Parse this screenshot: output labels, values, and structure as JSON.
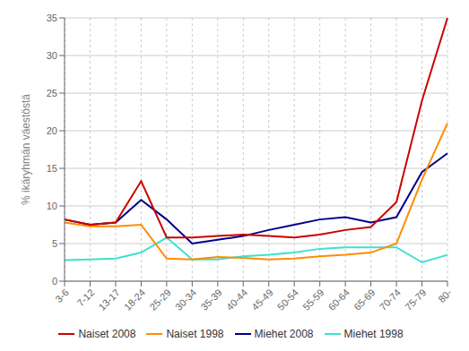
{
  "chart_data": {
    "type": "line",
    "ylabel": "% ikäryhmän väestöstä",
    "categories": [
      "3-6",
      "7-12",
      "13-17",
      "18-24",
      "25-29",
      "30-34",
      "35-39",
      "40-44",
      "45-49",
      "50-54",
      "55-59",
      "60-64",
      "65-69",
      "70-74",
      "75-79",
      "80-"
    ],
    "series": [
      {
        "name": "Naiset 2008",
        "color": "#cc0000",
        "values": [
          8.2,
          7.5,
          7.8,
          13.3,
          5.8,
          5.8,
          6.0,
          6.2,
          6.0,
          5.8,
          6.2,
          6.8,
          7.2,
          10.5,
          24.0,
          35.0
        ]
      },
      {
        "name": "Naiset 1998",
        "color": "#ff8c00",
        "values": [
          7.8,
          7.3,
          7.3,
          7.5,
          3.0,
          2.9,
          3.2,
          3.1,
          2.9,
          3.0,
          3.3,
          3.5,
          3.8,
          5.0,
          13.5,
          21.0
        ]
      },
      {
        "name": "Miehet 2008",
        "color": "#00008b",
        "values": [
          8.2,
          7.5,
          7.8,
          10.8,
          8.2,
          5.0,
          5.5,
          6.0,
          6.8,
          7.5,
          8.2,
          8.5,
          7.8,
          8.5,
          14.5,
          17.0
        ]
      },
      {
        "name": "Miehet 1998",
        "color": "#40e0d0",
        "values": [
          2.8,
          2.9,
          3.0,
          3.8,
          5.8,
          2.9,
          2.9,
          3.3,
          3.5,
          3.8,
          4.3,
          4.5,
          4.5,
          4.5,
          2.5,
          3.5
        ]
      }
    ],
    "ylim": [
      0,
      35
    ],
    "yticks": [
      0,
      5,
      10,
      15,
      20,
      25,
      30,
      35
    ],
    "grid": true,
    "legend": "bottom"
  }
}
